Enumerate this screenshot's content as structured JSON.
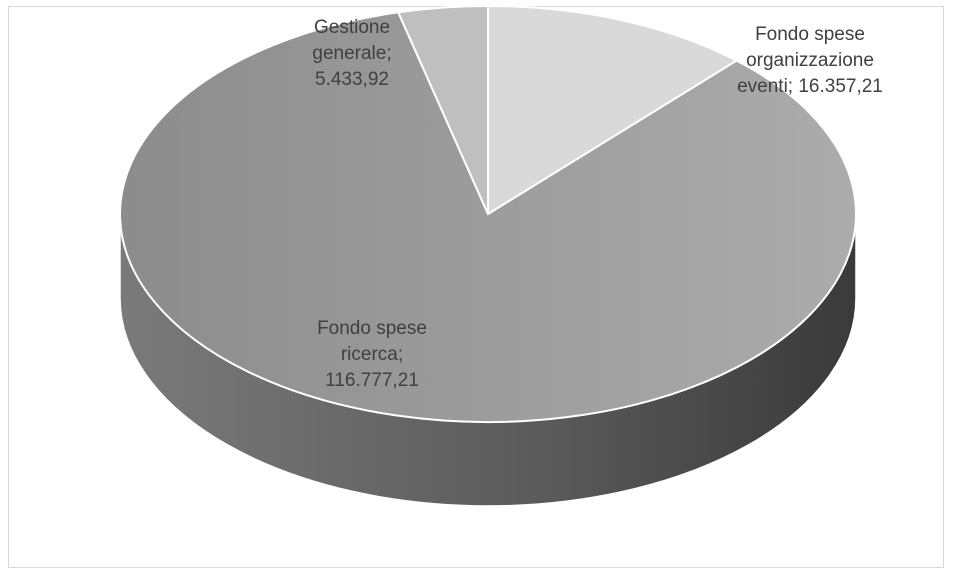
{
  "chart_data": {
    "type": "pie",
    "style": "3d",
    "title": "",
    "legend": "none",
    "slices": [
      {
        "label": "Fondo spese organizzazione eventi",
        "value": 16357.21,
        "display": "16.357,21",
        "color": "#d9d9d9",
        "label_lines": [
          "Fondo spese",
          "organizzazione",
          "eventi;  16.357,21"
        ]
      },
      {
        "label": "Fondo spese ricerca",
        "value": 116777.21,
        "display": "116.777,21",
        "color": "#a6a6a6",
        "label_lines": [
          "Fondo spese",
          "ricerca;",
          "116.777,21"
        ]
      },
      {
        "label": "Gestione generale",
        "value": 5433.92,
        "display": "5.433,92",
        "color": "#bfbfbf",
        "label_lines": [
          "Gestione",
          "generale;",
          "5.433,92"
        ]
      }
    ]
  }
}
